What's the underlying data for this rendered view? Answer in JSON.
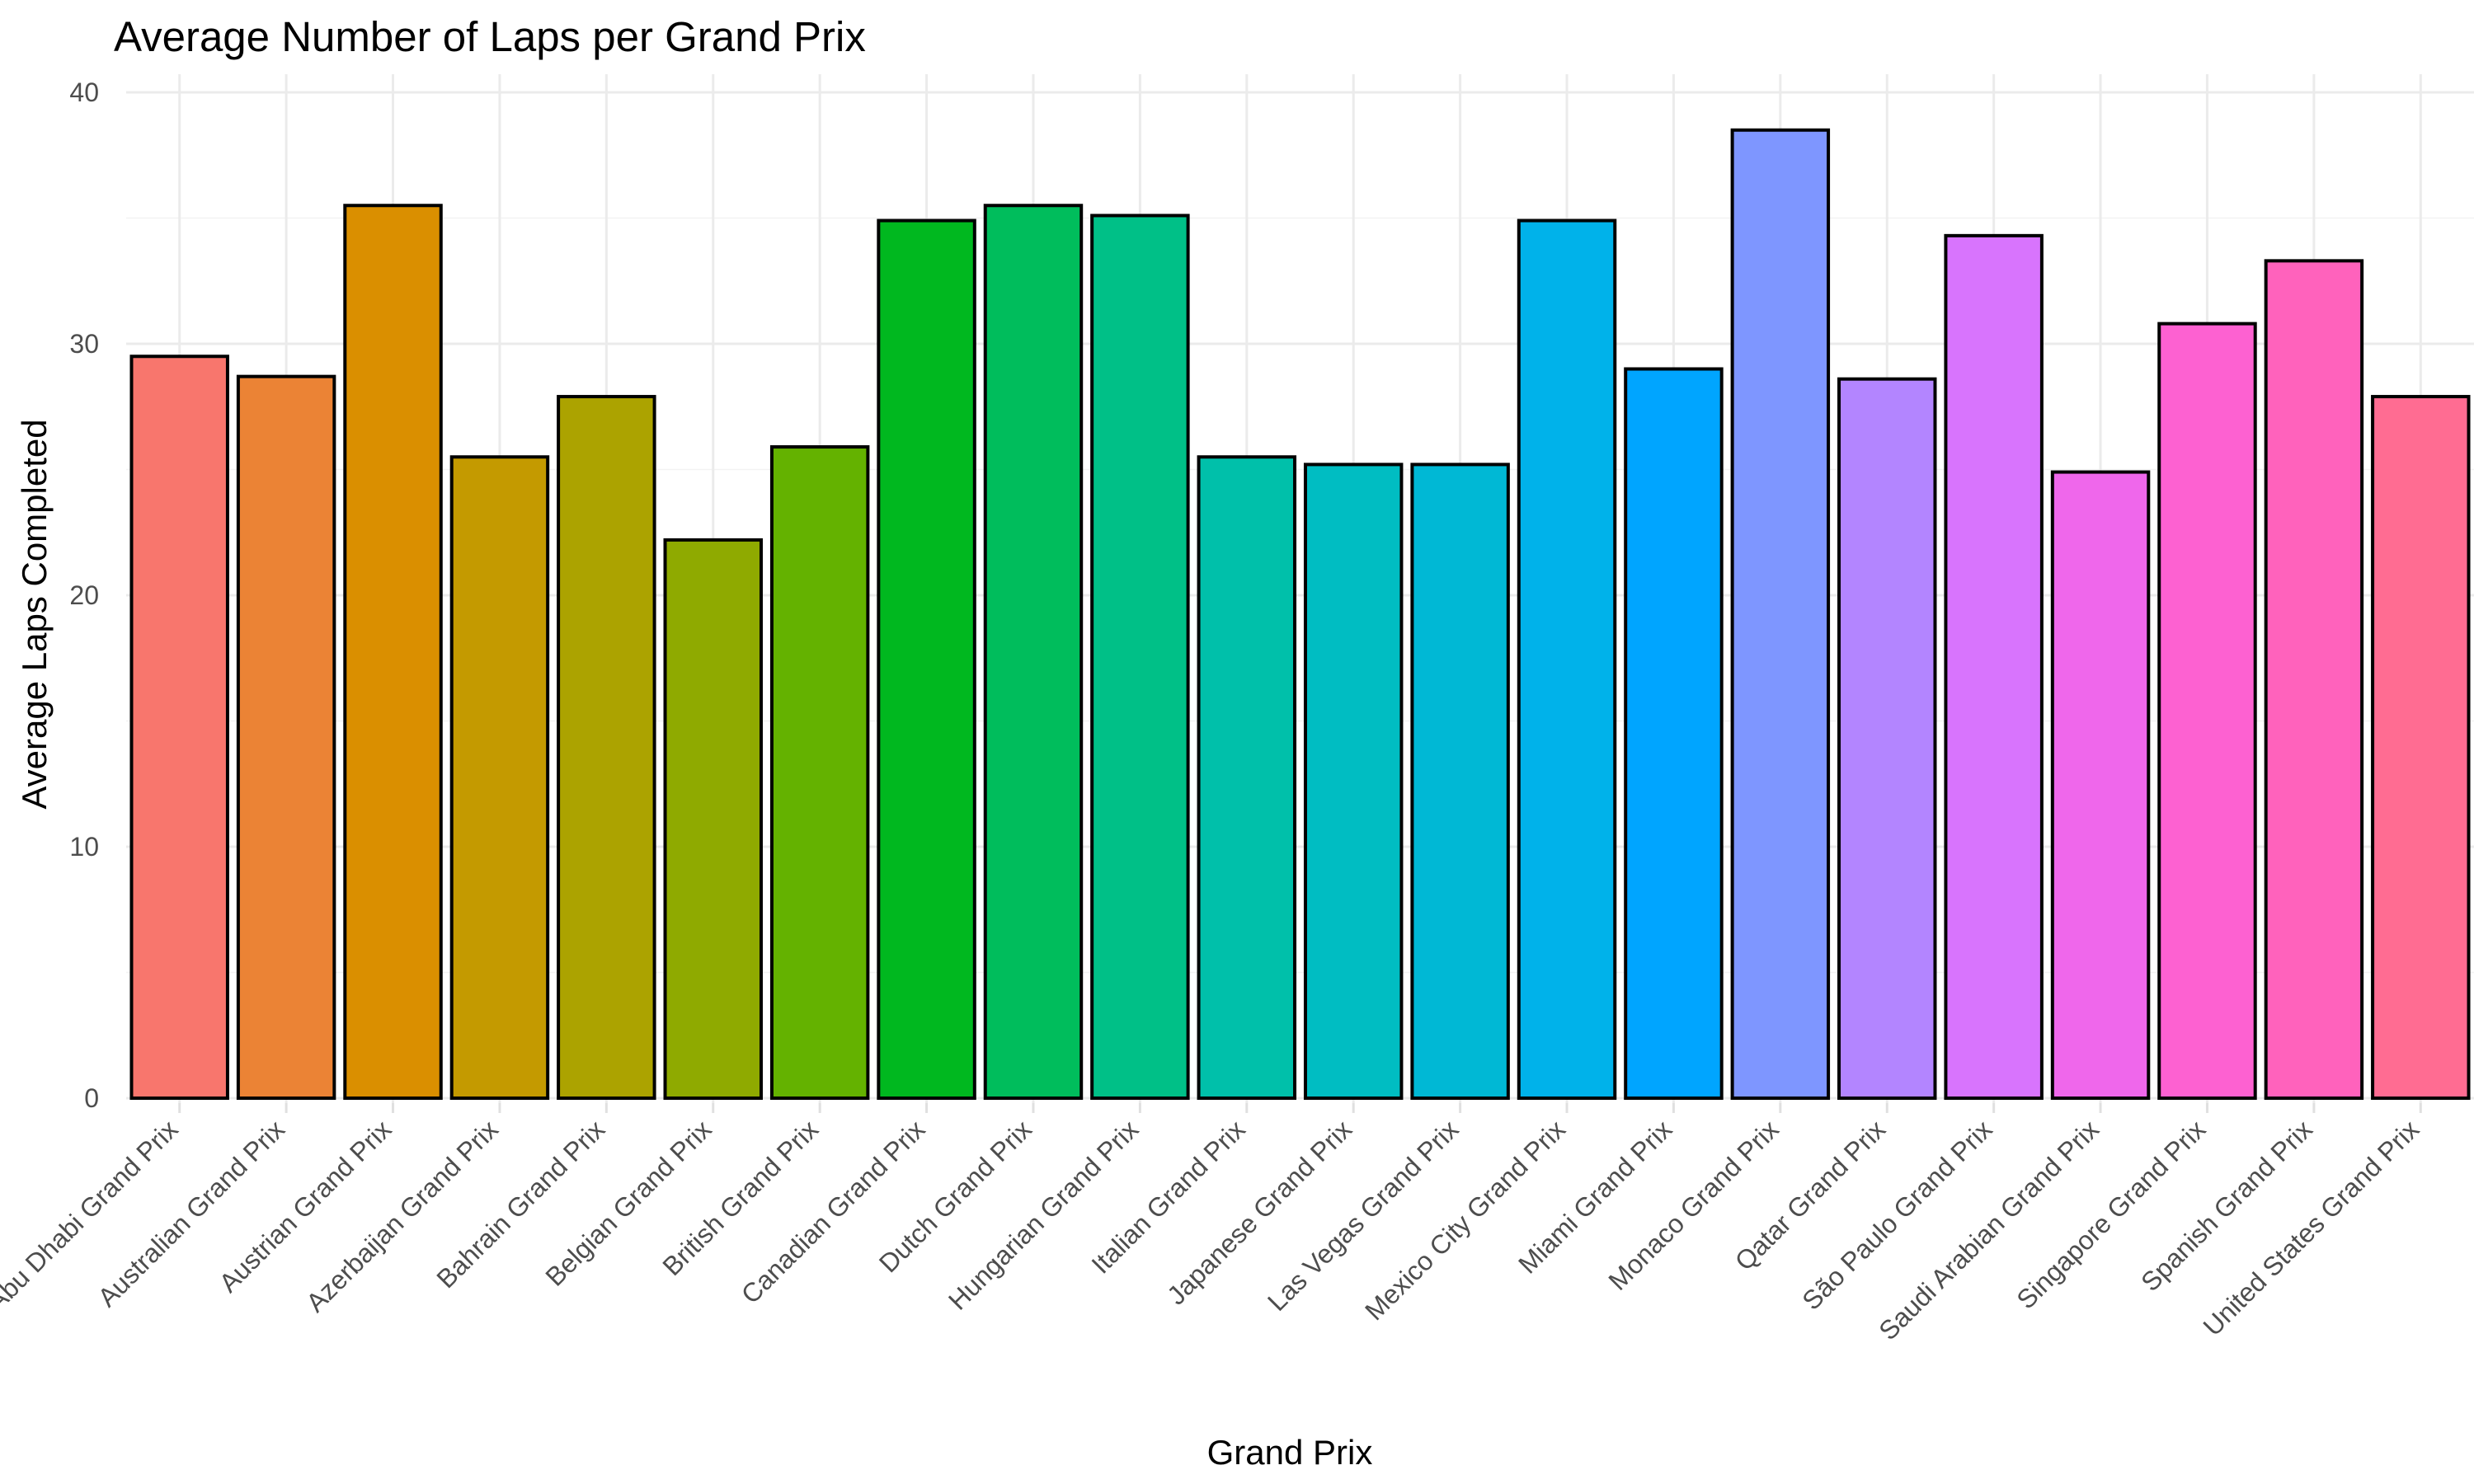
{
  "chart_data": {
    "type": "bar",
    "title": "Average Number of Laps per Grand Prix",
    "xlabel": "Grand Prix",
    "ylabel": "Average Laps Completed",
    "ylim": [
      0,
      40
    ],
    "yticks": [
      0,
      10,
      20,
      30,
      40
    ],
    "grid": true,
    "legend": "none",
    "categories": [
      "Abu Dhabi Grand Prix",
      "Australian Grand Prix",
      "Austrian Grand Prix",
      "Azerbaijan Grand Prix",
      "Bahrain Grand Prix",
      "Belgian Grand Prix",
      "British Grand Prix",
      "Canadian Grand Prix",
      "Dutch Grand Prix",
      "Hungarian Grand Prix",
      "Italian Grand Prix",
      "Japanese Grand Prix",
      "Las Vegas Grand Prix",
      "Mexico City Grand Prix",
      "Miami Grand Prix",
      "Monaco Grand Prix",
      "Qatar Grand Prix",
      "São Paulo Grand Prix",
      "Saudi Arabian Grand Prix",
      "Singapore Grand Prix",
      "Spanish Grand Prix",
      "United States Grand Prix"
    ],
    "values": [
      29.5,
      28.7,
      35.5,
      25.5,
      27.9,
      22.2,
      25.9,
      34.9,
      35.5,
      35.1,
      25.5,
      25.2,
      25.2,
      34.9,
      29.0,
      38.5,
      28.6,
      34.3,
      24.9,
      30.8,
      33.3,
      27.9
    ],
    "colors": [
      "#F8766D",
      "#EA8331",
      "#D89000",
      "#C09B00",
      "#A3A500",
      "#7CAE00",
      "#39B600",
      "#00BB4E",
      "#00BF7D",
      "#00C1A3",
      "#00BFC4",
      "#00BAE0",
      "#00B0F6",
      "#35A2FF",
      "#9590FF",
      "#C77CFF",
      "#E76BF3",
      "#FA62DB",
      "#FF62BC",
      "#FF6C91",
      "#FF6C91",
      "#FF6C91"
    ],
    "palette": [
      "#F8766D",
      "#EB8335",
      "#DA8F00",
      "#C49A00",
      "#ACA300",
      "#8FAA00",
      "#64B200",
      "#00B81F",
      "#00BD5C",
      "#00C087",
      "#00C0AA",
      "#00BDC2",
      "#00B8D5",
      "#00B2EA",
      "#00A5FF",
      "#7E96FF",
      "#B385FF",
      "#D874FD",
      "#EF67EB",
      "#FD61D1",
      "#FF62BC",
      "#FF6C92"
    ]
  }
}
